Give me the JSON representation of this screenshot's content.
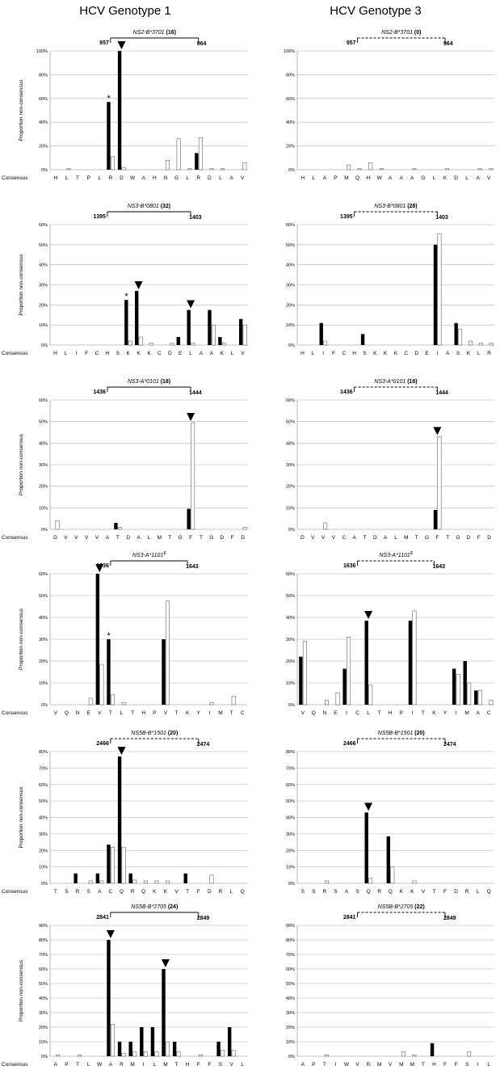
{
  "columns": [
    {
      "title": "HCV Genotype 1"
    },
    {
      "title": "HCV Genotype 3"
    }
  ],
  "chart_data": [
    {
      "type": "bar",
      "column": 0,
      "row": 0,
      "epitope": "NS2-B*3701",
      "count": "(16)",
      "pos_start": "957",
      "pos_end": "964",
      "bracket": "solid",
      "ylabel": "Proportion non-consensus",
      "ylim": [
        0,
        100
      ],
      "yticks": [
        "0%",
        "20%",
        "40%",
        "60%",
        "80%",
        "100%"
      ],
      "categories": [
        "H",
        "L",
        "T",
        "P",
        "L",
        "R",
        "D",
        "W",
        "A",
        "H",
        "N",
        "G",
        "L",
        "R",
        "D",
        "L",
        "A",
        "V"
      ],
      "series": [
        {
          "values": [
            0,
            0,
            0,
            0,
            0,
            57,
            100,
            0,
            0,
            0,
            0,
            0,
            0,
            14,
            0,
            0,
            0,
            0
          ]
        },
        {
          "values": [
            0,
            1,
            0,
            0,
            0,
            11,
            2,
            0,
            0,
            0,
            8,
            26,
            1,
            27,
            1,
            1,
            0,
            6
          ]
        }
      ],
      "arrows": [
        6
      ],
      "stars": [
        5
      ],
      "bracket_from": 5,
      "bracket_to": 13,
      "consensus_label": "Consensus"
    },
    {
      "type": "bar",
      "column": 1,
      "row": 0,
      "epitope": "NS2-B*3701",
      "count": "(0)",
      "pos_start": "957",
      "pos_end": "964",
      "bracket": "dashed",
      "ylim": [
        0,
        100
      ],
      "yticks": [
        "0%",
        "20%",
        "40%",
        "60%",
        "80%",
        "100%"
      ],
      "categories": [
        "H",
        "L",
        "A",
        "P",
        "M",
        "Q",
        "H",
        "W",
        "A",
        "A",
        "A",
        "G",
        "L",
        "K",
        "D",
        "L",
        "A",
        "V"
      ],
      "series": [
        {
          "values": [
            0,
            0,
            0,
            0,
            0,
            0,
            0,
            0,
            0,
            0,
            0,
            0,
            0,
            0,
            0,
            0,
            0,
            0
          ]
        },
        {
          "values": [
            0,
            0,
            0,
            0,
            4,
            1,
            6,
            1,
            0,
            0,
            1,
            0,
            0,
            1,
            0,
            0,
            1,
            1
          ]
        }
      ],
      "arrows": [],
      "stars": [],
      "bracket_from": 5,
      "bracket_to": 13
    },
    {
      "type": "bar",
      "column": 0,
      "row": 1,
      "epitope": "NS3-B*0801",
      "count": "(32)",
      "pos_start": "1395",
      "pos_end": "1403",
      "bracket": "solid",
      "ylabel": "Proportion non-consensus",
      "ylim": [
        0,
        60
      ],
      "yticks": [
        "0%",
        "10%",
        "20%",
        "30%",
        "40%",
        "50%",
        "60%"
      ],
      "categories": [
        "H",
        "L",
        "I",
        "F",
        "C",
        "H",
        "S",
        "K",
        "K",
        "K",
        "C",
        "D",
        "E",
        "L",
        "A",
        "A",
        "K",
        "L",
        "V"
      ],
      "series": [
        {
          "values": [
            0,
            0,
            0,
            0,
            0,
            0,
            0,
            22.5,
            27,
            0,
            0,
            0,
            4,
            17.5,
            0,
            17.5,
            4,
            0,
            13
          ]
        },
        {
          "values": [
            0,
            0,
            0,
            0,
            0,
            0,
            0,
            2,
            4,
            1,
            0,
            1,
            0,
            1,
            0,
            10,
            1,
            0,
            10
          ]
        }
      ],
      "arrows": [
        8,
        13
      ],
      "stars": [
        7
      ],
      "bracket_from": 5,
      "bracket_to": 13,
      "consensus_label": "Consensus"
    },
    {
      "type": "bar",
      "column": 1,
      "row": 1,
      "epitope": "NS3-B*0801",
      "count": "(28)",
      "pos_start": "1395",
      "pos_end": "1403",
      "bracket": "dashed",
      "ylim": [
        0,
        60
      ],
      "yticks": [
        "0%",
        "10%",
        "20%",
        "30%",
        "40%",
        "50%",
        "60%"
      ],
      "categories": [
        "H",
        "L",
        "I",
        "F",
        "C",
        "H",
        "S",
        "K",
        "K",
        "K",
        "C",
        "D",
        "E",
        "I",
        "A",
        "S",
        "K",
        "L",
        "R"
      ],
      "series": [
        {
          "values": [
            0,
            0,
            11,
            0,
            0,
            0,
            5.5,
            0,
            0,
            0,
            0,
            0,
            0,
            50,
            0,
            11,
            0,
            0,
            0
          ]
        },
        {
          "values": [
            0,
            0,
            2,
            0,
            0,
            0,
            0,
            0,
            0,
            0,
            0,
            0,
            0,
            55.5,
            0,
            8,
            2,
            1,
            1
          ]
        }
      ],
      "arrows": [],
      "stars": [],
      "bracket_from": 5,
      "bracket_to": 13
    },
    {
      "type": "bar",
      "column": 0,
      "row": 2,
      "epitope": "NS3-A*0101",
      "count": "(18)",
      "pos_start": "1436",
      "pos_end": "1444",
      "bracket": "solid",
      "ylabel": "Proportion non-consensus",
      "ylim": [
        0,
        60
      ],
      "yticks": [
        "0%",
        "10%",
        "20%",
        "30%",
        "40%",
        "50%",
        "60%"
      ],
      "categories": [
        "D",
        "V",
        "V",
        "V",
        "V",
        "A",
        "T",
        "D",
        "A",
        "L",
        "M",
        "T",
        "G",
        "F",
        "T",
        "G",
        "D",
        "F",
        "D"
      ],
      "series": [
        {
          "values": [
            0,
            0,
            0,
            0,
            0,
            0,
            3,
            0,
            0,
            0,
            0,
            0,
            0,
            9.5,
            0,
            0,
            0,
            0,
            0
          ]
        },
        {
          "values": [
            4,
            0,
            0,
            0,
            0,
            0,
            1,
            0,
            0,
            0,
            0,
            0,
            0,
            49.5,
            0,
            0,
            0,
            0,
            1
          ]
        }
      ],
      "arrows": [
        13
      ],
      "stars": [],
      "bracket_from": 5,
      "bracket_to": 13,
      "consensus_label": "Consensus"
    },
    {
      "type": "bar",
      "column": 1,
      "row": 2,
      "epitope": "NS3-A*0101",
      "count": "(18)",
      "pos_start": "1436",
      "pos_end": "1444",
      "bracket": "dashed",
      "ylim": [
        0,
        60
      ],
      "yticks": [
        "0%",
        "10%",
        "20%",
        "30%",
        "40%",
        "50%",
        "60%"
      ],
      "categories": [
        "D",
        "V",
        "V",
        "V",
        "C",
        "A",
        "T",
        "D",
        "A",
        "L",
        "M",
        "T",
        "G",
        "F",
        "T",
        "G",
        "D",
        "F",
        "D"
      ],
      "series": [
        {
          "values": [
            0,
            0,
            0,
            0,
            0,
            0,
            0,
            0,
            0,
            0,
            0,
            0,
            0,
            9,
            0,
            0,
            0,
            0,
            0
          ]
        },
        {
          "values": [
            0,
            0,
            3,
            0,
            0,
            0,
            0,
            0,
            0,
            0,
            0,
            0,
            0,
            43,
            0,
            0,
            0,
            0,
            0
          ]
        }
      ],
      "arrows": [
        13
      ],
      "stars": [],
      "bracket_from": 5,
      "bracket_to": 13
    },
    {
      "type": "bar",
      "column": 0,
      "row": 3,
      "epitope": "NS3-A*1101",
      "epitope_sup": "$",
      "count": "",
      "pos_start": "1636",
      "pos_end": "1643",
      "bracket": "solid",
      "ylabel": "Proportion non-consensus",
      "ylim": [
        0,
        60
      ],
      "yticks": [
        "0%",
        "10%",
        "20%",
        "30%",
        "40%",
        "50%",
        "60%"
      ],
      "categories": [
        "V",
        "Q",
        "N",
        "E",
        "V",
        "T",
        "L",
        "T",
        "H",
        "P",
        "V",
        "T",
        "K",
        "Y",
        "I",
        "M",
        "T",
        "C"
      ],
      "series": [
        {
          "values": [
            0,
            0,
            0,
            0,
            60,
            30,
            0,
            0,
            0,
            0,
            30,
            0,
            0,
            0,
            0,
            0,
            0,
            0
          ]
        },
        {
          "values": [
            0,
            0,
            0,
            3,
            18.5,
            4.5,
            1,
            0,
            0,
            0,
            47.5,
            0,
            0,
            0,
            1,
            0,
            4,
            0
          ]
        }
      ],
      "arrows": [
        4
      ],
      "stars": [
        5
      ],
      "bracket_from": 5,
      "bracket_to": 12,
      "consensus_label": "Consensus"
    },
    {
      "type": "bar",
      "column": 1,
      "row": 3,
      "epitope": "NS3-A*1101",
      "epitope_sup": "$",
      "count": "",
      "pos_start": "1636",
      "pos_end": "1643",
      "bracket": "dashed",
      "ylim": [
        0,
        60
      ],
      "yticks": [
        "0%",
        "10%",
        "20%",
        "30%",
        "40%",
        "50%",
        "60%"
      ],
      "categories": [
        "V",
        "Q",
        "N",
        "E",
        "I",
        "C",
        "L",
        "T",
        "H",
        "P",
        "I",
        "T",
        "K",
        "Y",
        "I",
        "M",
        "A",
        "C"
      ],
      "series": [
        {
          "values": [
            22,
            0,
            0,
            0,
            16.5,
            0,
            38.5,
            0,
            0,
            0,
            38.5,
            0,
            0,
            0,
            16.5,
            20,
            6.5,
            0
          ]
        },
        {
          "values": [
            29,
            0,
            2,
            5.5,
            31,
            0,
            9,
            0,
            0,
            0,
            43,
            0,
            0,
            0,
            14,
            10,
            6.5,
            2
          ]
        }
      ],
      "arrows": [
        6
      ],
      "stars": [],
      "bracket_from": 5,
      "bracket_to": 12
    },
    {
      "type": "bar",
      "column": 0,
      "row": 4,
      "epitope": "NS5B-B*1501",
      "count": "(20)",
      "pos_start": "2466",
      "pos_end": "2474",
      "bracket": "dashed",
      "ylabel": "Proportion non-consensus",
      "ylim": [
        0,
        80
      ],
      "yticks": [
        "0%",
        "10%",
        "20%",
        "30%",
        "40%",
        "50%",
        "60%",
        "70%",
        "80%"
      ],
      "categories": [
        "T",
        "S",
        "R",
        "S",
        "A",
        "C",
        "Q",
        "R",
        "Q",
        "K",
        "K",
        "V",
        "T",
        "F",
        "D",
        "R",
        "L",
        "Q"
      ],
      "series": [
        {
          "values": [
            0,
            0,
            6,
            0,
            6,
            23.5,
            77,
            6,
            0,
            0,
            0,
            0,
            6,
            0,
            0,
            0,
            0,
            0
          ]
        },
        {
          "values": [
            0,
            0,
            0,
            1.5,
            1.5,
            22,
            22,
            2,
            1.5,
            1.5,
            1.5,
            0,
            0,
            0,
            5,
            0,
            0,
            0
          ]
        }
      ],
      "arrows": [
        6
      ],
      "stars": [],
      "bracket_from": 5,
      "bracket_to": 13,
      "consensus_label": "Consensus"
    },
    {
      "type": "bar",
      "column": 1,
      "row": 4,
      "epitope": "NS5B-B*1501",
      "count": "(20)",
      "pos_start": "2466",
      "pos_end": "2474",
      "bracket": "dashed",
      "ylim": [
        0,
        80
      ],
      "yticks": [
        "0%",
        "10%",
        "20%",
        "30%",
        "40%",
        "50%",
        "60%",
        "70%",
        "80%"
      ],
      "categories": [
        "S",
        "S",
        "R",
        "S",
        "A",
        "S",
        "Q",
        "R",
        "Q",
        "K",
        "K",
        "V",
        "T",
        "F",
        "D",
        "R",
        "L",
        "Q"
      ],
      "series": [
        {
          "values": [
            0,
            0,
            0,
            0,
            0,
            0,
            43,
            0,
            28.5,
            0,
            0,
            0,
            0,
            0,
            0,
            0,
            0,
            0
          ]
        },
        {
          "values": [
            0,
            0,
            1.5,
            0,
            0,
            0,
            3,
            0,
            10,
            0,
            1.5,
            0,
            0,
            0,
            0,
            0,
            0,
            0
          ]
        }
      ],
      "arrows": [
        6
      ],
      "stars": [],
      "bracket_from": 5,
      "bracket_to": 13
    },
    {
      "type": "bar",
      "column": 0,
      "row": 5,
      "epitope": "NS5B-B*2705",
      "count": "(24)",
      "pos_start": "2841",
      "pos_end": "2849",
      "bracket": "solid",
      "ylabel": "Proportion non-consensus",
      "ylim": [
        0,
        90
      ],
      "yticks": [
        "0%",
        "10%",
        "20%",
        "30%",
        "40%",
        "50%",
        "60%",
        "70%",
        "80%",
        "90%"
      ],
      "categories": [
        "A",
        "P",
        "T",
        "L",
        "W",
        "A",
        "R",
        "M",
        "I",
        "L",
        "M",
        "T",
        "H",
        "F",
        "F",
        "S",
        "V",
        "L"
      ],
      "series": [
        {
          "values": [
            0,
            0,
            0,
            0,
            0,
            80,
            10,
            10,
            20,
            20,
            60,
            10,
            0,
            0,
            0,
            10,
            20,
            0
          ]
        },
        {
          "values": [
            1,
            0,
            1,
            0,
            0,
            22,
            2,
            3,
            3,
            3,
            10,
            3,
            0,
            1,
            0,
            4,
            4,
            0
          ]
        }
      ],
      "arrows": [
        5,
        10
      ],
      "stars": [],
      "bracket_from": 5,
      "bracket_to": 13,
      "consensus_label": "Consensus"
    },
    {
      "type": "bar",
      "column": 1,
      "row": 5,
      "epitope": "NS5B-B*2705",
      "count": "(22)",
      "pos_start": "2841",
      "pos_end": "2849",
      "bracket": "dashed",
      "ylim": [
        0,
        90
      ],
      "yticks": [
        "0%",
        "10%",
        "20%",
        "30%",
        "40%",
        "50%",
        "60%",
        "70%",
        "80%",
        "90%"
      ],
      "categories": [
        "A",
        "P",
        "T",
        "I",
        "W",
        "V",
        "R",
        "M",
        "V",
        "M",
        "M",
        "T",
        "H",
        "F",
        "F",
        "S",
        "I",
        "L"
      ],
      "series": [
        {
          "values": [
            0,
            0,
            0,
            0,
            0,
            0,
            0,
            0,
            0,
            0,
            0,
            0,
            9,
            0,
            0,
            0,
            0,
            0
          ]
        },
        {
          "values": [
            0,
            0,
            1,
            0,
            0,
            0,
            0,
            0,
            0,
            3,
            1,
            0,
            0,
            0,
            0,
            3,
            0,
            0
          ]
        }
      ],
      "arrows": [],
      "stars": [],
      "bracket_from": 5,
      "bracket_to": 13
    }
  ]
}
